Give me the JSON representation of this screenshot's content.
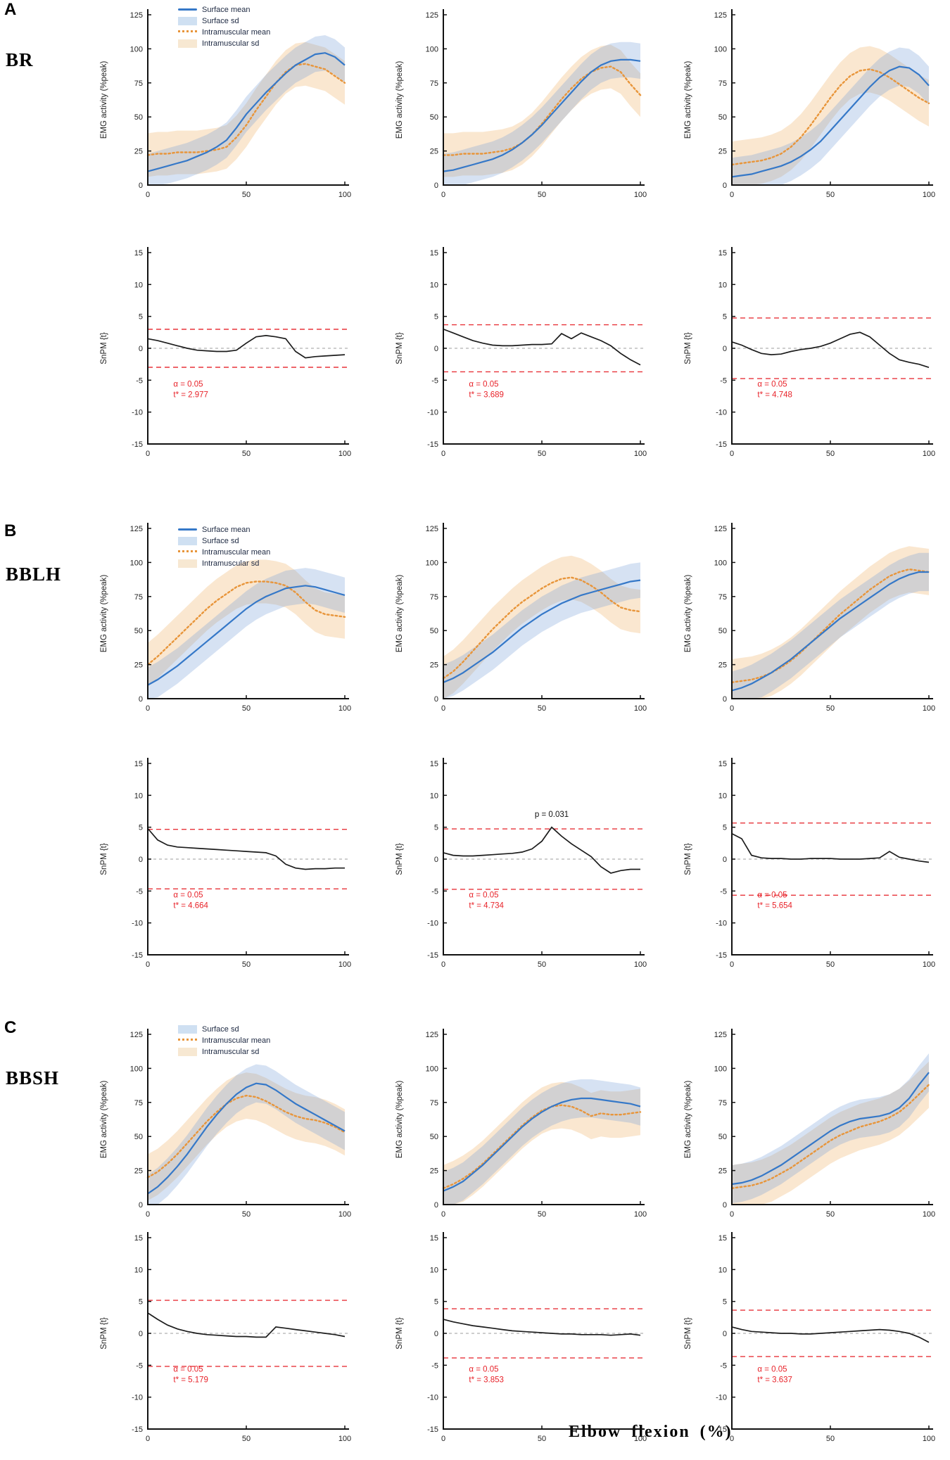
{
  "figure": {
    "xlabel": "Elbow flexion (%)"
  },
  "chart_data": {
    "type": "line",
    "x_start": 0,
    "x_step": 5,
    "x_end": 100,
    "xlim": [
      0,
      100
    ],
    "xticks": [
      0,
      50,
      100
    ],
    "xlabel": "Elbow flexion (%)",
    "emg_axis": {
      "ylabel": "EMG activity (%peak)",
      "ylim": [
        0,
        125
      ],
      "yticks": [
        0,
        25,
        50,
        75,
        100,
        125
      ]
    },
    "snpm_axis": {
      "ylabel": "SnPM {t}",
      "ylim": [
        -15,
        15
      ],
      "yticks": [
        -15,
        -10,
        -5,
        0,
        5,
        10,
        15
      ]
    },
    "colors": {
      "surface_line": "#3578c8",
      "surface_band": "rgba(120,160,215,0.30)",
      "intra_line": "#e8953a",
      "intra_band": "rgba(240,185,120,0.35)",
      "threshold_line": "#e8333a",
      "stat_text": "#e8232a",
      "t_curve": "#1c1c1c",
      "zero_line": "#b0b0b0",
      "axis": "#111111"
    },
    "panels": [
      {
        "letter": "A",
        "muscle": "BR",
        "legend": [
          {
            "label": "Surface mean",
            "swatch": "blue-line"
          },
          {
            "label": "Surface sd",
            "swatch": "blue-band"
          },
          {
            "label": "Intramuscular mean",
            "swatch": "orange-dotted"
          },
          {
            "label": "Intramuscular sd",
            "swatch": "orange-band"
          }
        ],
        "emg": [
          {
            "surface_mean": [
              10,
              12,
              14,
              16,
              18,
              21,
              24,
              28,
              33,
              42,
              52,
              60,
              68,
              75,
              82,
              88,
              92,
              96,
              97,
              94,
              88
            ],
            "surface_sd": 13,
            "intra_mean": [
              22,
              23,
              23,
              24,
              24,
              24,
              25,
              26,
              28,
              35,
              44,
              55,
              65,
              75,
              83,
              88,
              89,
              87,
              85,
              80,
              75
            ],
            "intra_sd": 16
          },
          {
            "surface_mean": [
              10,
              11,
              13,
              15,
              17,
              19,
              22,
              26,
              31,
              37,
              44,
              52,
              60,
              68,
              76,
              83,
              88,
              91,
              92,
              92,
              91
            ],
            "surface_sd": 13,
            "intra_mean": [
              22,
              22,
              23,
              23,
              23,
              24,
              25,
              27,
              31,
              37,
              45,
              54,
              63,
              71,
              78,
              83,
              86,
              87,
              83,
              74,
              66
            ],
            "intra_sd": 16
          },
          {
            "surface_mean": [
              6,
              7,
              8,
              10,
              12,
              14,
              17,
              21,
              26,
              32,
              40,
              48,
              56,
              64,
              72,
              79,
              84,
              87,
              86,
              81,
              73
            ],
            "surface_sd": 14,
            "intra_mean": [
              15,
              16,
              17,
              18,
              20,
              23,
              28,
              35,
              44,
              54,
              64,
              73,
              80,
              84,
              85,
              83,
              79,
              74,
              69,
              64,
              60
            ],
            "intra_sd": 17
          }
        ],
        "snpm": [
          {
            "t": [
              1.5,
              1.2,
              0.8,
              0.4,
              0.0,
              -0.3,
              -0.4,
              -0.5,
              -0.5,
              -0.3,
              0.8,
              1.8,
              2.0,
              1.8,
              1.5,
              -0.5,
              -1.5,
              -1.3,
              -1.2,
              -1.1,
              -1.0
            ],
            "threshold": 2.977,
            "alpha_label": "α = 0.05",
            "tstar_label": "t* = 2.977"
          },
          {
            "t": [
              3.0,
              2.4,
              1.8,
              1.2,
              0.8,
              0.5,
              0.4,
              0.4,
              0.5,
              0.6,
              0.6,
              0.7,
              2.3,
              1.5,
              2.4,
              1.8,
              1.2,
              0.4,
              -0.8,
              -1.8,
              -2.6
            ],
            "threshold": 3.689,
            "alpha_label": "α = 0.05",
            "tstar_label": "t* = 3.689"
          },
          {
            "t": [
              1.0,
              0.5,
              -0.2,
              -0.8,
              -1.0,
              -0.9,
              -0.5,
              -0.2,
              0.0,
              0.3,
              0.8,
              1.5,
              2.2,
              2.5,
              1.8,
              0.5,
              -0.8,
              -1.8,
              -2.2,
              -2.5,
              -3.0
            ],
            "threshold": 4.748,
            "alpha_label": "α = 0.05",
            "tstar_label": "t* = 4.748"
          }
        ]
      },
      {
        "letter": "B",
        "muscle": "BBLH",
        "legend": [
          {
            "label": "Surface mean",
            "swatch": "blue-line"
          },
          {
            "label": "Surface sd",
            "swatch": "blue-band"
          },
          {
            "label": "Intramuscular mean",
            "swatch": "orange-dotted"
          },
          {
            "label": "Intramuscular sd",
            "swatch": "orange-band"
          }
        ],
        "emg": [
          {
            "surface_mean": [
              10,
              14,
              19,
              24,
              30,
              36,
              42,
              48,
              54,
              60,
              66,
              71,
              75,
              78,
              81,
              82,
              83,
              82,
              80,
              78,
              76
            ],
            "surface_sd": 13,
            "intra_mean": [
              25,
              31,
              38,
              45,
              52,
              59,
              66,
              72,
              77,
              82,
              85,
              86,
              86,
              85,
              83,
              78,
              71,
              65,
              62,
              61,
              60
            ],
            "intra_sd": 16
          },
          {
            "surface_mean": [
              12,
              15,
              19,
              24,
              29,
              34,
              40,
              46,
              52,
              57,
              62,
              66,
              70,
              73,
              76,
              78,
              80,
              82,
              84,
              86,
              87
            ],
            "surface_sd": 13,
            "intra_mean": [
              15,
              20,
              27,
              35,
              43,
              51,
              58,
              65,
              71,
              76,
              81,
              85,
              88,
              89,
              87,
              83,
              78,
              72,
              67,
              65,
              64
            ],
            "intra_sd": 16
          },
          {
            "surface_mean": [
              6,
              8,
              11,
              15,
              19,
              24,
              29,
              35,
              41,
              47,
              53,
              59,
              64,
              69,
              74,
              79,
              84,
              88,
              91,
              93,
              93
            ],
            "surface_sd": 14,
            "intra_mean": [
              12,
              13,
              14,
              16,
              19,
              23,
              28,
              34,
              41,
              48,
              55,
              62,
              68,
              74,
              80,
              85,
              90,
              93,
              95,
              94,
              93
            ],
            "intra_sd": 17
          }
        ],
        "snpm": [
          {
            "t": [
              4.8,
              3.0,
              2.2,
              1.9,
              1.8,
              1.7,
              1.6,
              1.5,
              1.4,
              1.3,
              1.2,
              1.1,
              1.0,
              0.5,
              -0.8,
              -1.4,
              -1.6,
              -1.5,
              -1.5,
              -1.4,
              -1.4
            ],
            "threshold": 4.664,
            "alpha_label": "α = 0.05",
            "tstar_label": "t* = 4.664"
          },
          {
            "t": [
              1.0,
              0.6,
              0.5,
              0.5,
              0.6,
              0.7,
              0.8,
              0.9,
              1.1,
              1.6,
              2.8,
              5.0,
              3.6,
              2.4,
              1.4,
              0.4,
              -1.2,
              -2.2,
              -1.8,
              -1.6,
              -1.6
            ],
            "threshold": 4.734,
            "alpha_label": "α = 0.05",
            "tstar_label": "t* = 4.734",
            "annotation": {
              "text": "p = 0.031",
              "x": 55,
              "y": 6.6
            }
          },
          {
            "t": [
              4.0,
              3.2,
              0.6,
              0.2,
              0.1,
              0.1,
              0.0,
              0.0,
              0.1,
              0.1,
              0.1,
              0.0,
              0.0,
              0.0,
              0.1,
              0.2,
              1.2,
              0.3,
              0.0,
              -0.3,
              -0.5
            ],
            "threshold": 5.654,
            "alpha_label": "α = 0.05",
            "tstar_label": "t* = 5.654"
          }
        ]
      },
      {
        "letter": "C",
        "muscle": "BBSH",
        "legend": [
          {
            "label": "Surface sd",
            "swatch": "blue-band"
          },
          {
            "label": "Intramuscular mean",
            "swatch": "orange-dotted"
          },
          {
            "label": "Intramuscular sd",
            "swatch": "orange-band"
          }
        ],
        "emg": [
          {
            "surface_mean": [
              8,
              13,
              20,
              28,
              37,
              47,
              57,
              66,
              74,
              81,
              86,
              89,
              88,
              84,
              79,
              74,
              70,
              66,
              62,
              58,
              54
            ],
            "surface_sd": 14,
            "intra_mean": [
              20,
              24,
              30,
              37,
              45,
              53,
              61,
              68,
              74,
              78,
              80,
              79,
              76,
              72,
              68,
              65,
              63,
              62,
              60,
              57,
              53
            ],
            "intra_sd": 17
          },
          {
            "surface_mean": [
              10,
              13,
              17,
              23,
              29,
              36,
              43,
              50,
              57,
              63,
              68,
              72,
              75,
              77,
              78,
              78,
              77,
              76,
              75,
              74,
              72
            ],
            "surface_sd": 14,
            "intra_mean": [
              12,
              15,
              19,
              24,
              30,
              37,
              44,
              51,
              58,
              64,
              69,
              72,
              73,
              72,
              69,
              65,
              67,
              66,
              66,
              67,
              68
            ],
            "intra_sd": 17
          },
          {
            "surface_mean": [
              15,
              16,
              18,
              21,
              25,
              29,
              34,
              39,
              44,
              49,
              54,
              58,
              61,
              63,
              64,
              65,
              67,
              71,
              78,
              88,
              97
            ],
            "surface_sd": 14,
            "intra_mean": [
              12,
              13,
              14,
              16,
              19,
              23,
              27,
              32,
              37,
              42,
              47,
              51,
              54,
              57,
              59,
              61,
              64,
              68,
              74,
              81,
              88
            ],
            "intra_sd": 17
          }
        ],
        "snpm": [
          {
            "t": [
              3.2,
              2.2,
              1.3,
              0.7,
              0.3,
              0.0,
              -0.2,
              -0.3,
              -0.4,
              -0.5,
              -0.5,
              -0.6,
              -0.6,
              1.0,
              0.8,
              0.6,
              0.4,
              0.2,
              0.0,
              -0.2,
              -0.5
            ],
            "threshold": 5.179,
            "alpha_label": "α = 0.05",
            "tstar_label": "t* = 5.179"
          },
          {
            "t": [
              2.2,
              1.8,
              1.5,
              1.2,
              1.0,
              0.8,
              0.6,
              0.4,
              0.3,
              0.2,
              0.1,
              0.0,
              -0.1,
              -0.1,
              -0.2,
              -0.2,
              -0.2,
              -0.3,
              -0.2,
              -0.1,
              -0.3
            ],
            "threshold": 3.853,
            "alpha_label": "α = 0.05",
            "tstar_label": "t* = 3.853"
          },
          {
            "t": [
              1.0,
              0.6,
              0.3,
              0.2,
              0.1,
              0.0,
              0.0,
              -0.1,
              -0.1,
              0.0,
              0.1,
              0.2,
              0.3,
              0.4,
              0.5,
              0.6,
              0.5,
              0.3,
              0.0,
              -0.6,
              -1.4
            ],
            "threshold": 3.637,
            "alpha_label": "α = 0.05",
            "tstar_label": "t* = 3.637"
          }
        ]
      }
    ]
  }
}
